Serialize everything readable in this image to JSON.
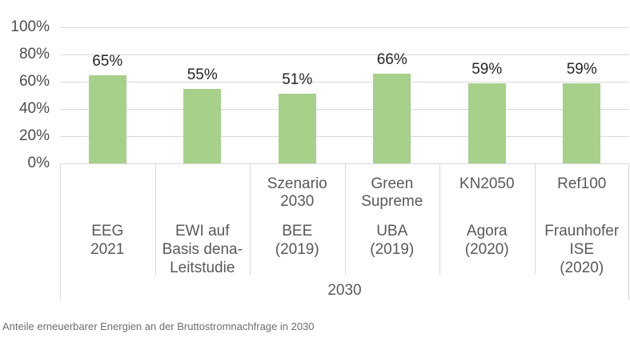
{
  "chart_data": {
    "type": "bar",
    "title": "",
    "caption": "Anteile erneuerbarer Energien an der Bruttostromnachfrage in 2030",
    "group_label": "2030",
    "categories": [
      "EEG 2021",
      "EWI auf Basis dena-Leitstudie",
      "Szenario 2030 — BEE (2019)",
      "Green Supreme — UBA (2019)",
      "KN2050 — Agora (2020)",
      "Ref100 — Fraunhofer ISE (2020)"
    ],
    "scenario_label_lines": [
      [],
      [],
      [
        "Szenario",
        "2030"
      ],
      [
        "Green",
        "Supreme"
      ],
      [
        "KN2050"
      ],
      [
        "Ref100"
      ]
    ],
    "source_label_lines": [
      [
        "EEG",
        "2021"
      ],
      [
        "EWI auf",
        "Basis dena-",
        "Leitstudie"
      ],
      [
        "BEE",
        "(2019)"
      ],
      [
        "UBA",
        "(2019)"
      ],
      [
        "Agora",
        "(2020)"
      ],
      [
        "Fraunhofer",
        "ISE",
        "(2020)"
      ]
    ],
    "values": [
      65,
      55,
      51,
      66,
      59,
      59
    ],
    "value_labels": [
      "65%",
      "55%",
      "51%",
      "66%",
      "59%",
      "59%"
    ],
    "y_ticks": [
      {
        "value": 0,
        "label": "0%"
      },
      {
        "value": 20,
        "label": "20%"
      },
      {
        "value": 40,
        "label": "40%"
      },
      {
        "value": 60,
        "label": "60%"
      },
      {
        "value": 80,
        "label": "80%"
      },
      {
        "value": 100,
        "label": "100%"
      }
    ],
    "ylim": [
      0,
      100
    ],
    "xlabel": "2030",
    "ylabel": "",
    "grid": true,
    "legend": "none",
    "bar_color": "#a7d08b",
    "grid_color": "#d9d9d9"
  }
}
